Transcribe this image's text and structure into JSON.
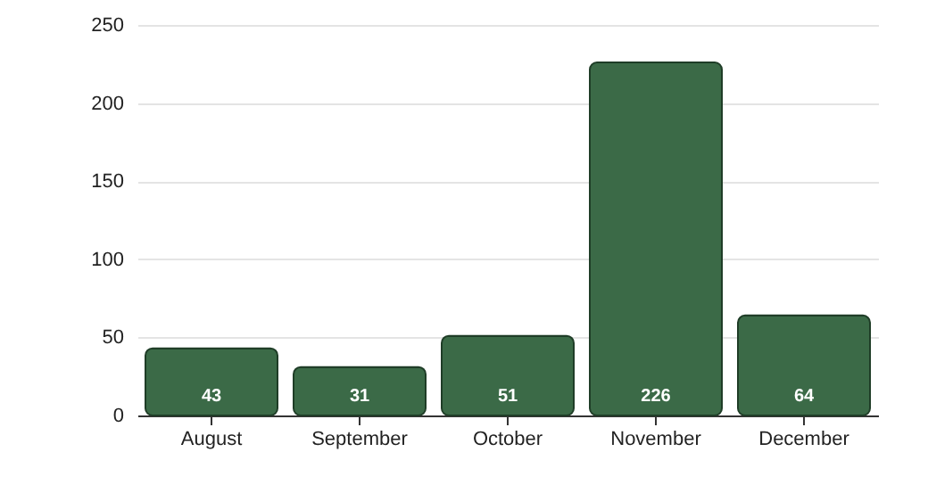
{
  "chart_data": {
    "type": "bar",
    "categories": [
      "August",
      "September",
      "October",
      "November",
      "December"
    ],
    "values": [
      43,
      31,
      51,
      226,
      64
    ],
    "color": "#3b6a47",
    "ylim": [
      0,
      250
    ],
    "yticks": [
      0,
      50,
      100,
      150,
      200,
      250
    ],
    "grid": "y",
    "data_labels": true
  }
}
